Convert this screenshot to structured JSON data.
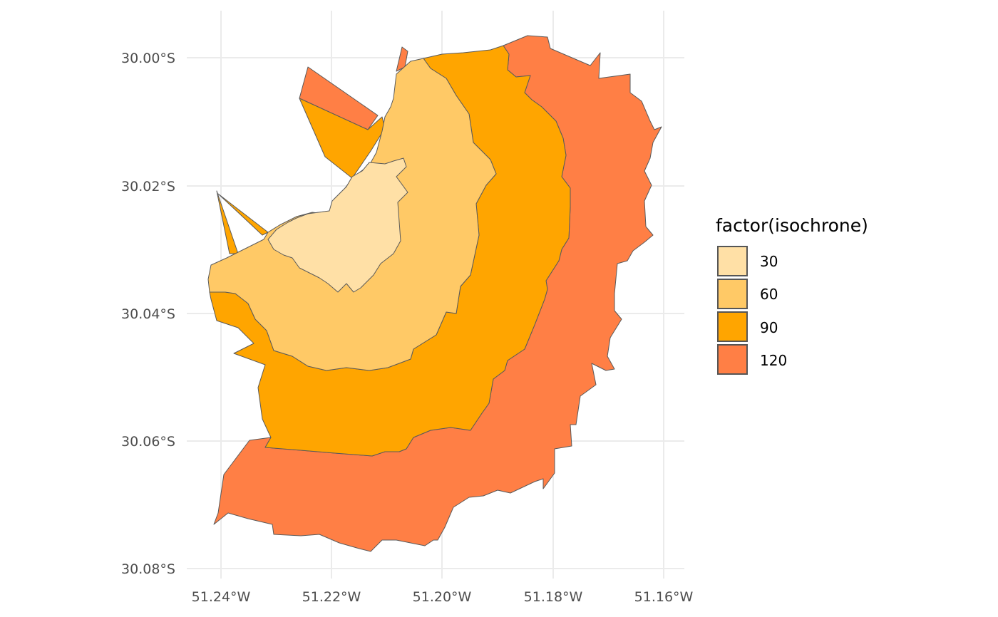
{
  "map": {
    "x_ticks": [
      "51.24°W",
      "51.22°W",
      "51.20°W",
      "51.18°W",
      "51.16°W"
    ],
    "y_ticks": [
      "30.00°S",
      "30.02°S",
      "30.04°S",
      "30.06°S",
      "30.08°S"
    ],
    "grid": true
  },
  "legend": {
    "title": "factor(isochrone)",
    "placement": "right",
    "items": [
      {
        "label": "30",
        "color": "#FFE0A6"
      },
      {
        "label": "60",
        "color": "#FFC966"
      },
      {
        "label": "90",
        "color": "#FFA500"
      },
      {
        "label": "120",
        "color": "#FF7F45"
      }
    ]
  },
  "zones": [
    {
      "isochrone": "120",
      "color": "#FF7F45"
    },
    {
      "isochrone": "90",
      "color": "#FFA500"
    },
    {
      "isochrone": "60",
      "color": "#FFC966"
    },
    {
      "isochrone": "30",
      "color": "#FFE0A6"
    }
  ]
}
